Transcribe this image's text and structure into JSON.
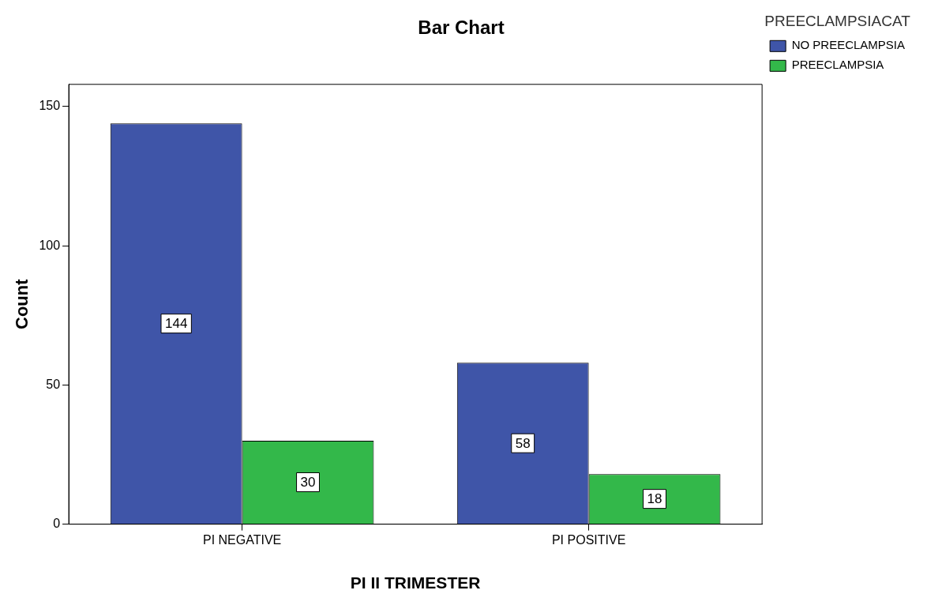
{
  "chart_data": {
    "type": "bar",
    "title": "Bar Chart",
    "xlabel": "PI II TRIMESTER",
    "ylabel": "Count",
    "legend_title": "PREECLAMPSIACAT",
    "categories": [
      "PI NEGATIVE",
      "PI POSITIVE"
    ],
    "series": [
      {
        "name": "NO PREECLAMPSIA",
        "color": "#3f55a8",
        "values": [
          144,
          58
        ]
      },
      {
        "name": "PREECLAMPSIA",
        "color": "#33b84a",
        "values": [
          30,
          18
        ]
      }
    ],
    "ylim": [
      0,
      158
    ],
    "yticks": [
      0,
      50,
      100,
      150
    ],
    "grid": false,
    "legend": "top right",
    "data_labels": true
  }
}
